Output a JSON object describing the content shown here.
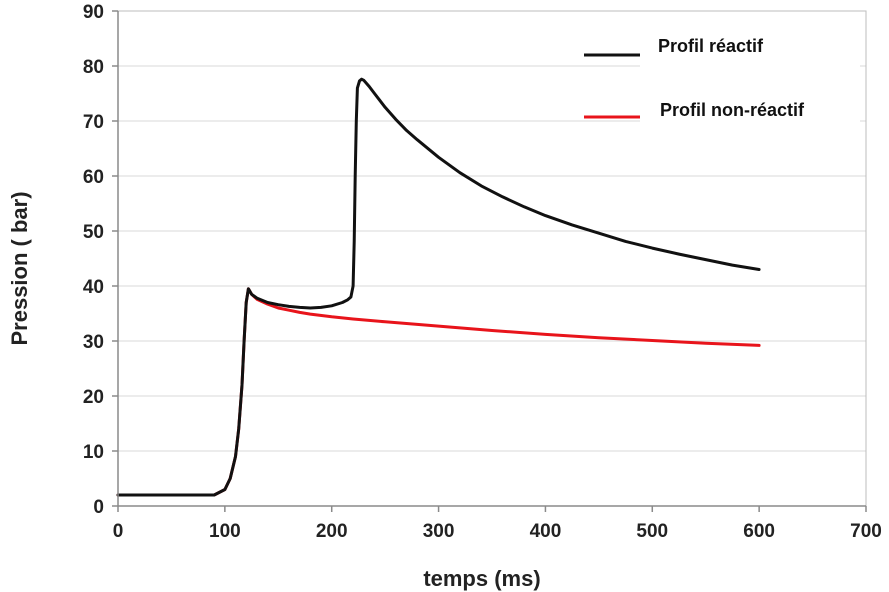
{
  "chart_data": {
    "type": "line",
    "title": "",
    "xlabel": "temps (ms)",
    "ylabel": "Pression ( bar)",
    "xlim": [
      0,
      700
    ],
    "ylim": [
      0,
      90
    ],
    "xticks": [
      0,
      100,
      200,
      300,
      400,
      500,
      600,
      700
    ],
    "yticks": [
      0,
      10,
      20,
      30,
      40,
      50,
      60,
      70,
      80,
      90
    ],
    "grid": "horizontal",
    "legend_position": "top-right",
    "series": [
      {
        "name": "Profil réactif",
        "color": "#111111",
        "points": [
          [
            0,
            2
          ],
          [
            90,
            2
          ],
          [
            100,
            3
          ],
          [
            105,
            5
          ],
          [
            110,
            9
          ],
          [
            113,
            14
          ],
          [
            116,
            22
          ],
          [
            118,
            30
          ],
          [
            120,
            37
          ],
          [
            122,
            39.5
          ],
          [
            125,
            38.5
          ],
          [
            130,
            37.8
          ],
          [
            140,
            37
          ],
          [
            150,
            36.6
          ],
          [
            160,
            36.3
          ],
          [
            170,
            36.1
          ],
          [
            180,
            36.0
          ],
          [
            190,
            36.1
          ],
          [
            200,
            36.4
          ],
          [
            210,
            37
          ],
          [
            215,
            37.5
          ],
          [
            218,
            38
          ],
          [
            220,
            40
          ],
          [
            221,
            48
          ],
          [
            222,
            60
          ],
          [
            223,
            70
          ],
          [
            224,
            76
          ],
          [
            226,
            77.3
          ],
          [
            228,
            77.6
          ],
          [
            230,
            77.4
          ],
          [
            235,
            76.3
          ],
          [
            240,
            75
          ],
          [
            250,
            72.5
          ],
          [
            260,
            70.3
          ],
          [
            270,
            68.3
          ],
          [
            280,
            66.6
          ],
          [
            300,
            63.4
          ],
          [
            320,
            60.6
          ],
          [
            340,
            58.2
          ],
          [
            360,
            56.2
          ],
          [
            380,
            54.4
          ],
          [
            400,
            52.8
          ],
          [
            425,
            51.1
          ],
          [
            450,
            49.6
          ],
          [
            475,
            48.1
          ],
          [
            500,
            46.9
          ],
          [
            525,
            45.8
          ],
          [
            550,
            44.8
          ],
          [
            575,
            43.8
          ],
          [
            600,
            43
          ]
        ]
      },
      {
        "name": "Profil non-réactif",
        "color": "#e8141b",
        "points": [
          [
            0,
            2
          ],
          [
            90,
            2
          ],
          [
            100,
            3
          ],
          [
            105,
            5
          ],
          [
            110,
            9
          ],
          [
            113,
            14
          ],
          [
            116,
            22
          ],
          [
            118,
            30
          ],
          [
            120,
            37
          ],
          [
            122,
            39.5
          ],
          [
            125,
            38.5
          ],
          [
            130,
            37.6
          ],
          [
            140,
            36.7
          ],
          [
            150,
            36
          ],
          [
            160,
            35.6
          ],
          [
            170,
            35.2
          ],
          [
            180,
            34.9
          ],
          [
            200,
            34.4
          ],
          [
            220,
            34
          ],
          [
            250,
            33.5
          ],
          [
            300,
            32.7
          ],
          [
            350,
            31.9
          ],
          [
            400,
            31.2
          ],
          [
            450,
            30.6
          ],
          [
            500,
            30.1
          ],
          [
            550,
            29.6
          ],
          [
            600,
            29.2
          ]
        ]
      }
    ]
  }
}
